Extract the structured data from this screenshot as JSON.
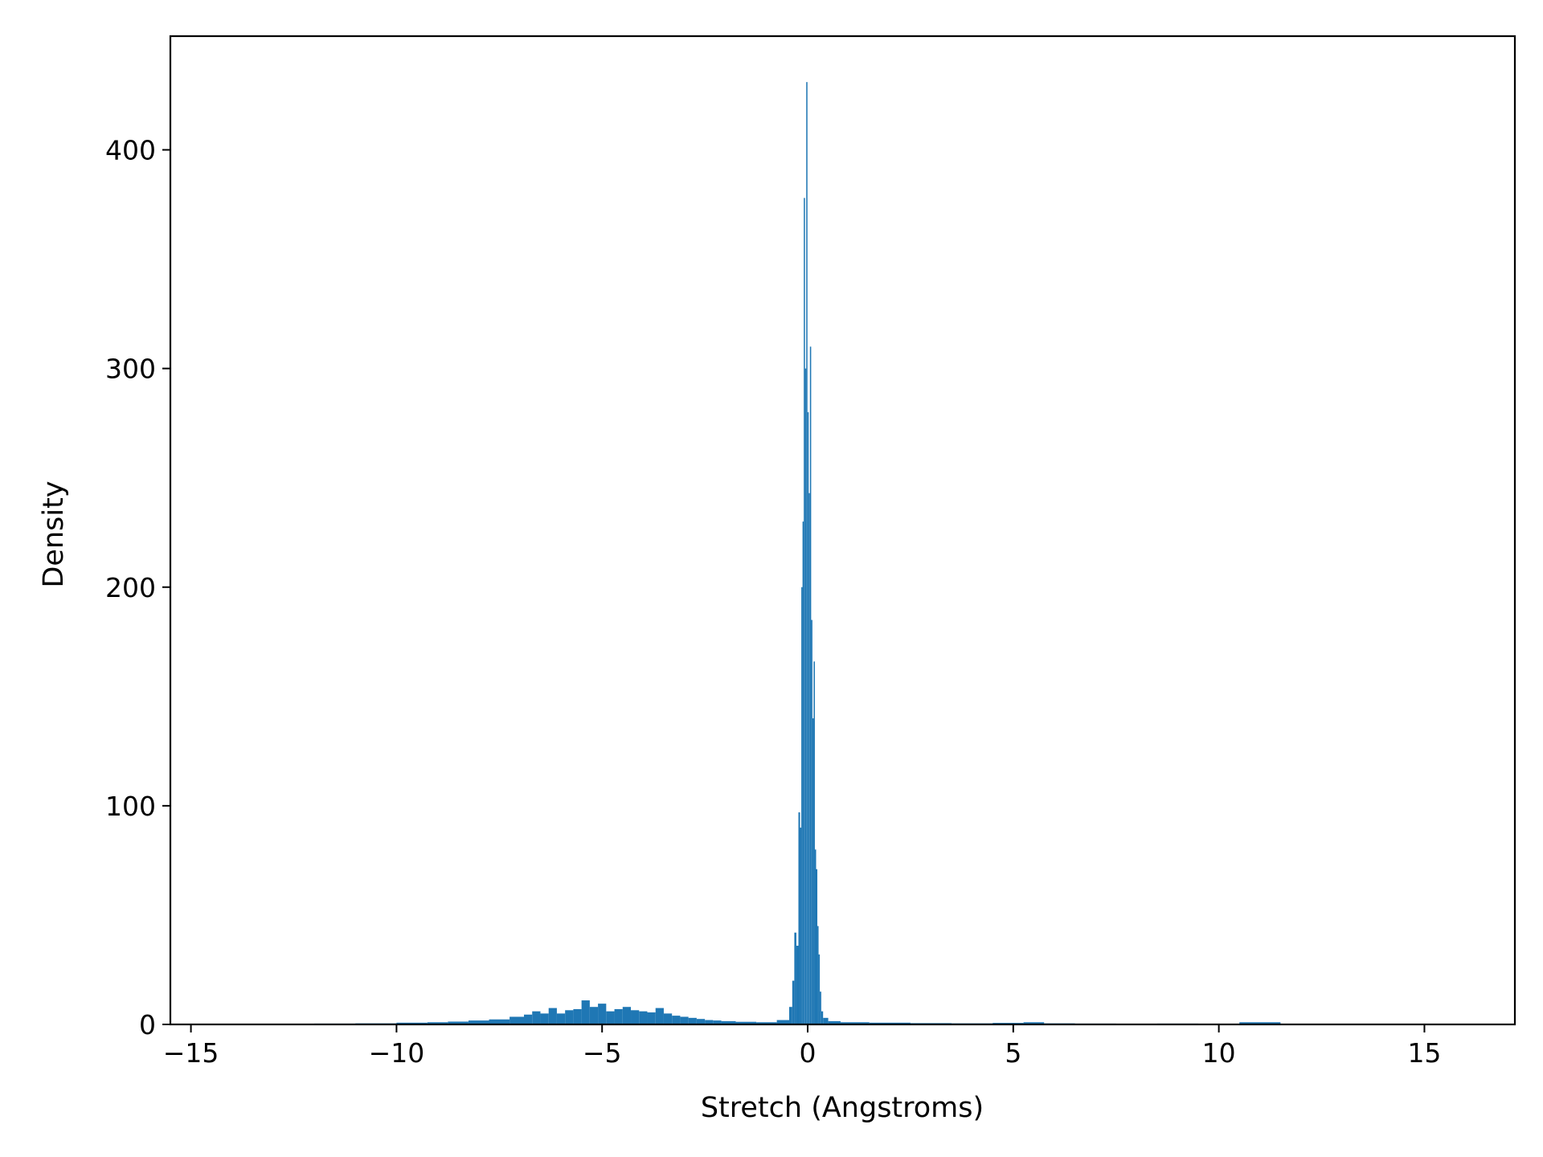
{
  "chart_data": {
    "type": "bar",
    "subtype": "histogram",
    "title": "",
    "xlabel": "Stretch (Angstroms)",
    "ylabel": "Density",
    "xlim": [
      -15.5,
      17.2
    ],
    "ylim": [
      0,
      452
    ],
    "xticks": [
      -15,
      -10,
      -5,
      0,
      5,
      10,
      15
    ],
    "xtick_labels": [
      "−15",
      "−10",
      "−5",
      "0",
      "5",
      "10",
      "15"
    ],
    "yticks": [
      0,
      100,
      200,
      300,
      400
    ],
    "ytick_labels": [
      "0",
      "100",
      "200",
      "300",
      "400"
    ],
    "grid": false,
    "legend": "none",
    "bar_color": "#1f77b4",
    "bins": [
      {
        "x": -14.5,
        "y": 0.2
      },
      {
        "x": -13.5,
        "y": 0.3
      },
      {
        "x": -12.5,
        "y": 0.3
      },
      {
        "x": -11.5,
        "y": 0.4
      },
      {
        "x": -10.5,
        "y": 0.5
      },
      {
        "x": -9.5,
        "y": 0.8
      },
      {
        "x": -9.0,
        "y": 1.0
      },
      {
        "x": -8.5,
        "y": 1.3
      },
      {
        "x": -8.0,
        "y": 1.8
      },
      {
        "x": -7.5,
        "y": 2.3
      },
      {
        "x": -7.0,
        "y": 3.5
      },
      {
        "x": -6.8,
        "y": 4.5
      },
      {
        "x": -6.6,
        "y": 6.0
      },
      {
        "x": -6.4,
        "y": 5.0
      },
      {
        "x": -6.2,
        "y": 7.5
      },
      {
        "x": -6.0,
        "y": 5.0
      },
      {
        "x": -5.8,
        "y": 6.5
      },
      {
        "x": -5.6,
        "y": 7.0
      },
      {
        "x": -5.4,
        "y": 11.0
      },
      {
        "x": -5.2,
        "y": 8.0
      },
      {
        "x": -5.0,
        "y": 9.5
      },
      {
        "x": -4.8,
        "y": 6.0
      },
      {
        "x": -4.6,
        "y": 7.0
      },
      {
        "x": -4.4,
        "y": 8.0
      },
      {
        "x": -4.2,
        "y": 6.5
      },
      {
        "x": -4.0,
        "y": 6.0
      },
      {
        "x": -3.8,
        "y": 5.5
      },
      {
        "x": -3.6,
        "y": 7.5
      },
      {
        "x": -3.4,
        "y": 5.0
      },
      {
        "x": -3.2,
        "y": 4.0
      },
      {
        "x": -3.0,
        "y": 3.5
      },
      {
        "x": -2.8,
        "y": 3.0
      },
      {
        "x": -2.6,
        "y": 2.5
      },
      {
        "x": -2.4,
        "y": 2.0
      },
      {
        "x": -2.2,
        "y": 1.8
      },
      {
        "x": -2.0,
        "y": 1.5
      },
      {
        "x": -1.5,
        "y": 1.2
      },
      {
        "x": -1.0,
        "y": 1.0
      },
      {
        "x": -0.5,
        "y": 2.0
      },
      {
        "x": -0.4,
        "y": 8.0
      },
      {
        "x": -0.35,
        "y": 20.0
      },
      {
        "x": -0.3,
        "y": 42.0
      },
      {
        "x": -0.25,
        "y": 36.0
      },
      {
        "x": -0.2,
        "y": 97.0
      },
      {
        "x": -0.17,
        "y": 90.0
      },
      {
        "x": -0.14,
        "y": 200.0
      },
      {
        "x": -0.11,
        "y": 230.0
      },
      {
        "x": -0.08,
        "y": 378.0
      },
      {
        "x": -0.05,
        "y": 300.0
      },
      {
        "x": -0.02,
        "y": 431.0
      },
      {
        "x": 0.01,
        "y": 280.0
      },
      {
        "x": 0.04,
        "y": 243.0
      },
      {
        "x": 0.07,
        "y": 310.0
      },
      {
        "x": 0.1,
        "y": 185.0
      },
      {
        "x": 0.13,
        "y": 140.0
      },
      {
        "x": 0.16,
        "y": 166.0
      },
      {
        "x": 0.19,
        "y": 80.0
      },
      {
        "x": 0.22,
        "y": 71.0
      },
      {
        "x": 0.25,
        "y": 45.0
      },
      {
        "x": 0.28,
        "y": 32.0
      },
      {
        "x": 0.31,
        "y": 15.0
      },
      {
        "x": 0.35,
        "y": 6.0
      },
      {
        "x": 0.4,
        "y": 3.0
      },
      {
        "x": 0.6,
        "y": 1.5
      },
      {
        "x": 1.0,
        "y": 1.0
      },
      {
        "x": 2.0,
        "y": 0.8
      },
      {
        "x": 3.0,
        "y": 0.6
      },
      {
        "x": 4.0,
        "y": 0.5
      },
      {
        "x": 5.0,
        "y": 0.7
      },
      {
        "x": 5.5,
        "y": 1.0
      },
      {
        "x": 6.0,
        "y": 0.5
      },
      {
        "x": 7.0,
        "y": 0.4
      },
      {
        "x": 8.0,
        "y": 0.3
      },
      {
        "x": 9.0,
        "y": 0.4
      },
      {
        "x": 10.0,
        "y": 0.3
      },
      {
        "x": 11.0,
        "y": 1.0
      },
      {
        "x": 12.0,
        "y": 0.3
      },
      {
        "x": 13.0,
        "y": 0.2
      },
      {
        "x": 14.0,
        "y": 0.2
      },
      {
        "x": 15.0,
        "y": 0.2
      },
      {
        "x": 15.8,
        "y": 0.2
      }
    ]
  }
}
